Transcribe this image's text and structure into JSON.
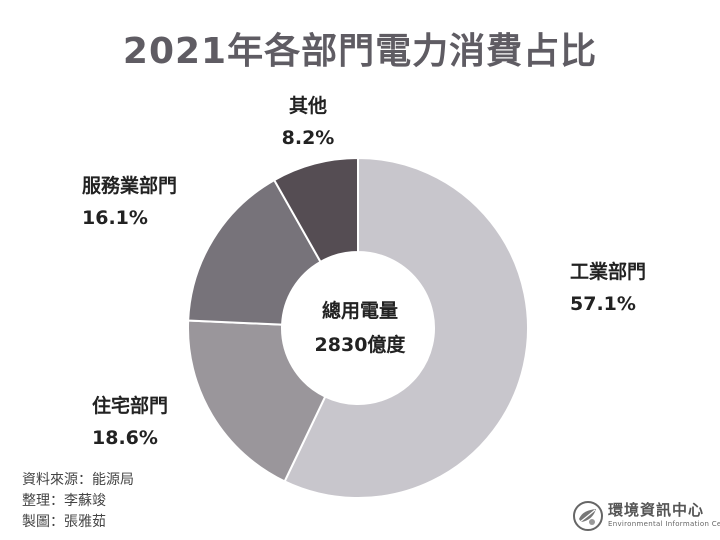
{
  "title": "2021年各部門電力消費占比",
  "chart_data": {
    "type": "pie",
    "title": "2021年各部門電力消費占比",
    "center_title": "總用電量",
    "center_value": "2830億度",
    "slices": [
      {
        "label": "工業部門",
        "value": 57.1,
        "value_label": "57.1%",
        "color": "#c8c6cc"
      },
      {
        "label": "住宅部門",
        "value": 18.6,
        "value_label": "18.6%",
        "color": "#9a969b"
      },
      {
        "label": "服務業部門",
        "value": 16.1,
        "value_label": "16.1%",
        "color": "#77737a"
      },
      {
        "label": "其他",
        "value": 8.2,
        "value_label": "8.2%",
        "color": "#554d53"
      }
    ]
  },
  "credits": {
    "source": "資料來源：能源局",
    "editor": "整理：李蘇竣",
    "designer": "製圖：張雅茹"
  },
  "logo": {
    "name": "環境資訊中心",
    "subtitle": "Environmental Information Center"
  }
}
